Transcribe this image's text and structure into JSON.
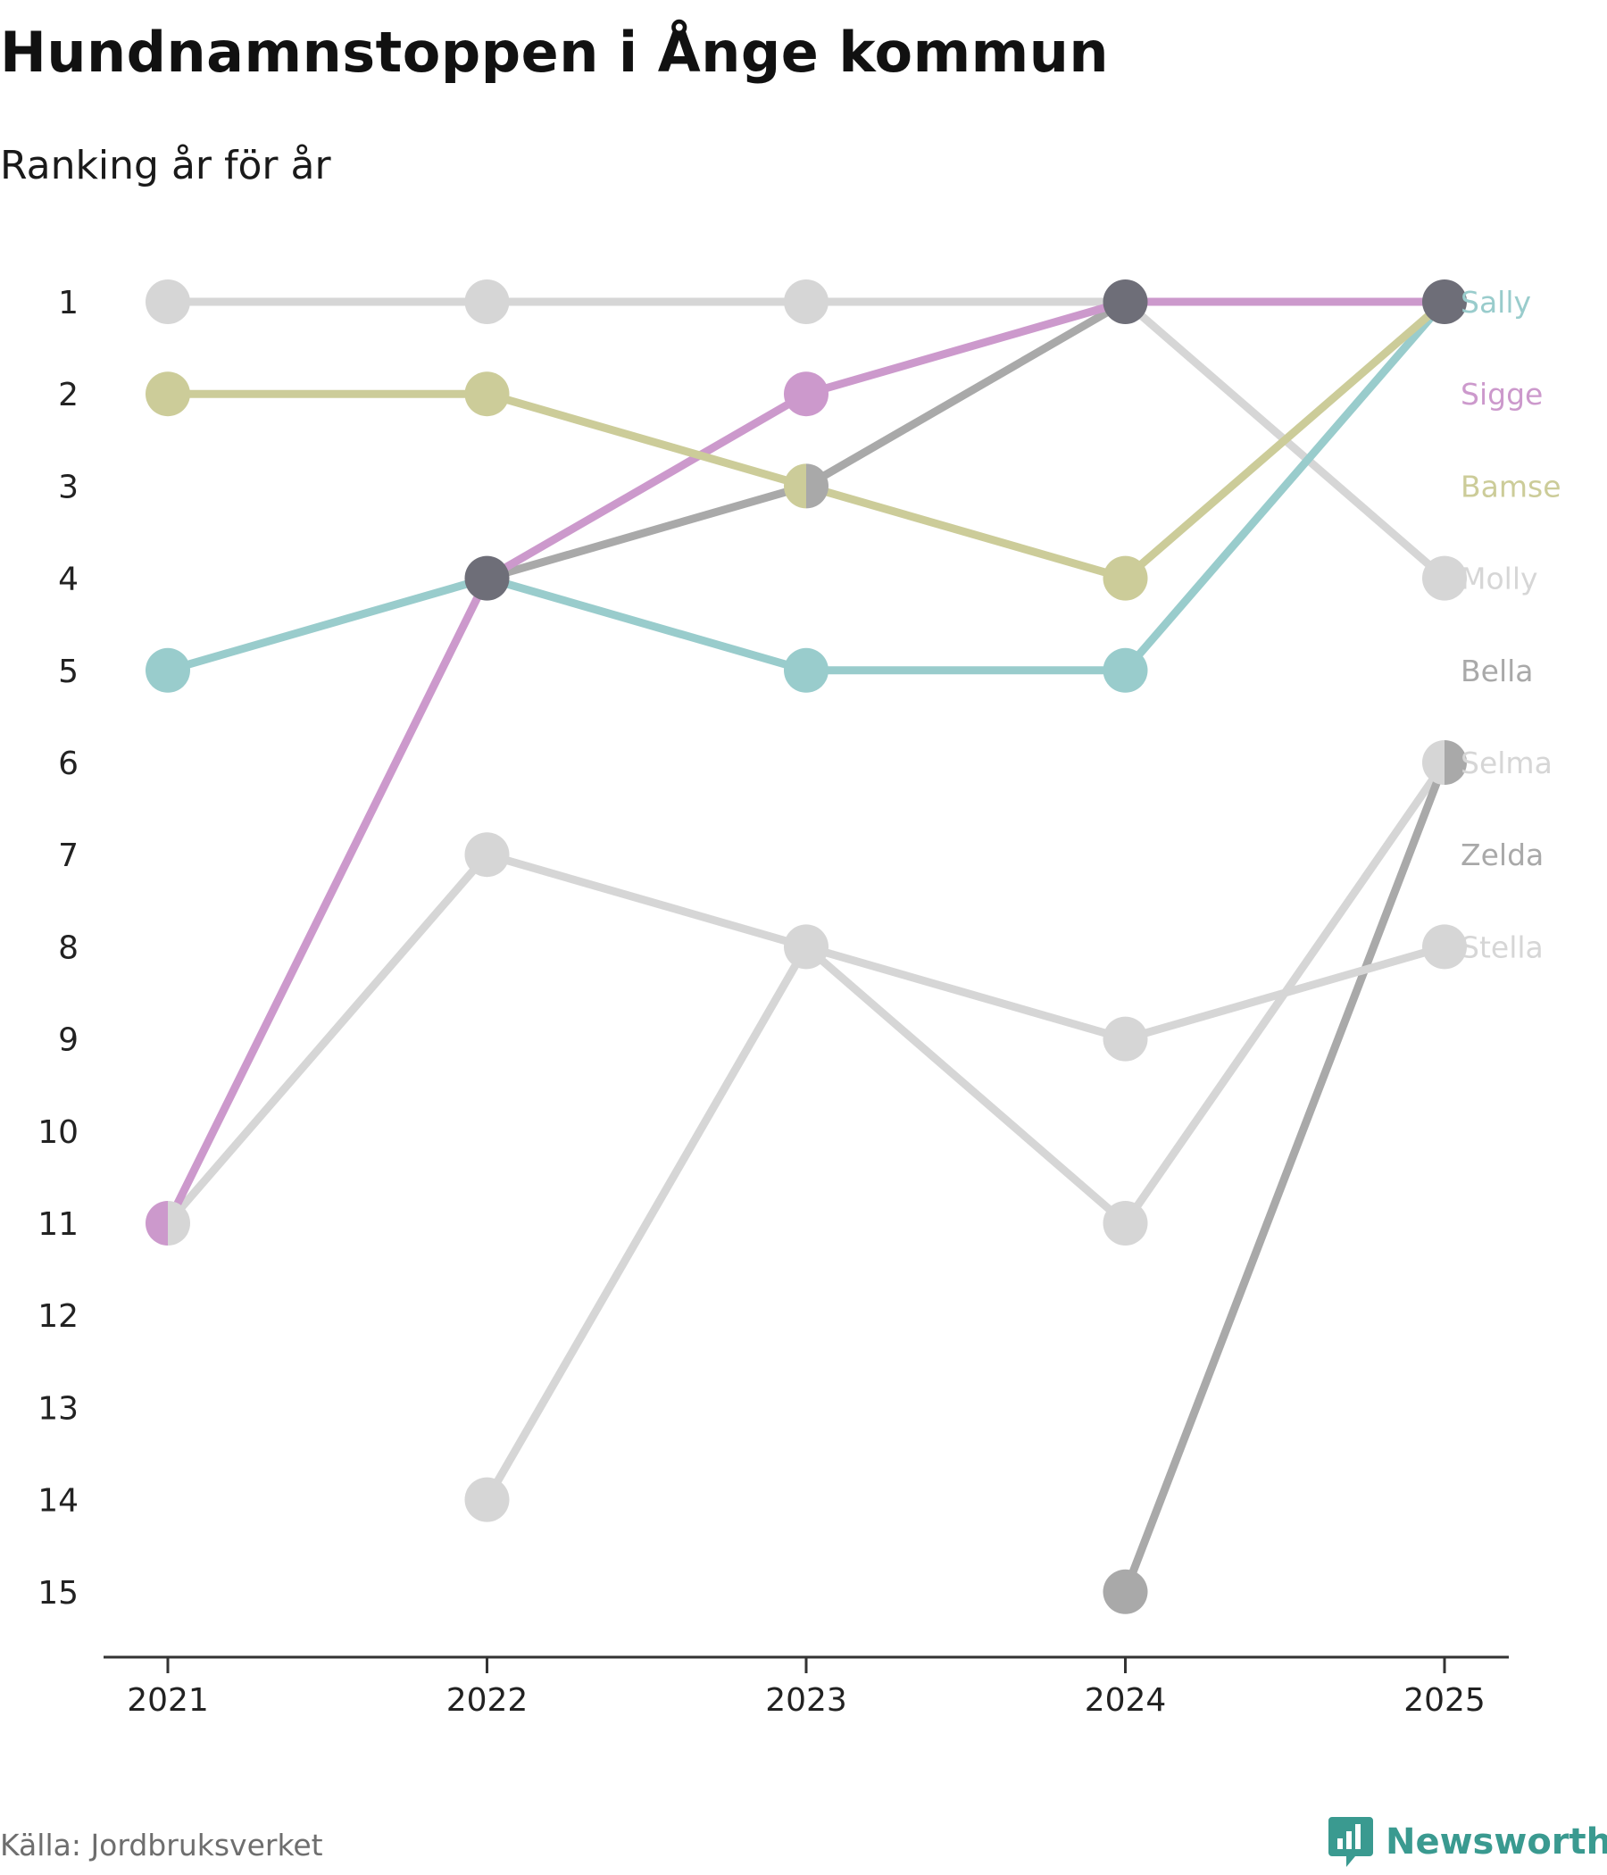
{
  "title": "Hundnamnstoppen i Ånge kommun",
  "subtitle": "Ranking år för år",
  "source": "Källa: Jordbruksverket",
  "brand": "Newsworthy",
  "chart_data": {
    "type": "line",
    "title": "Hundnamnstoppen i Ånge kommun",
    "subtitle": "Ranking år för år",
    "x": [
      "2021",
      "2022",
      "2023",
      "2024",
      "2025"
    ],
    "y_ticks": [
      "1",
      "2",
      "3",
      "4",
      "5",
      "6",
      "7",
      "8",
      "9",
      "10",
      "11",
      "12",
      "13",
      "14",
      "15"
    ],
    "ylim": [
      1,
      15
    ],
    "y_inverted": true,
    "series": [
      {
        "name": "Sally",
        "color": "#99cccc",
        "values": [
          5,
          4,
          5,
          5,
          1
        ]
      },
      {
        "name": "Sigge",
        "color": "#cc99cc",
        "values": [
          11,
          4,
          2,
          1,
          1
        ]
      },
      {
        "name": "Bamse",
        "color": "#cccc99",
        "values": [
          2,
          2,
          3,
          4,
          1
        ]
      },
      {
        "name": "Molly",
        "color": "#d6d6d6",
        "values": [
          1,
          1,
          1,
          1,
          4
        ]
      },
      {
        "name": "Bella",
        "color": "#a9a9a9",
        "values": [
          null,
          4,
          3,
          1,
          1
        ]
      },
      {
        "name": "Selma",
        "color": "#d6d6d6",
        "values": [
          null,
          14,
          8,
          11,
          6
        ]
      },
      {
        "name": "Zelda",
        "color": "#a9a9a9",
        "values": [
          null,
          null,
          null,
          15,
          6
        ]
      },
      {
        "name": "Stella",
        "color": "#d6d6d6",
        "values": [
          11,
          7,
          8,
          9,
          8
        ]
      }
    ],
    "overlap_color": "#6e6e78"
  }
}
